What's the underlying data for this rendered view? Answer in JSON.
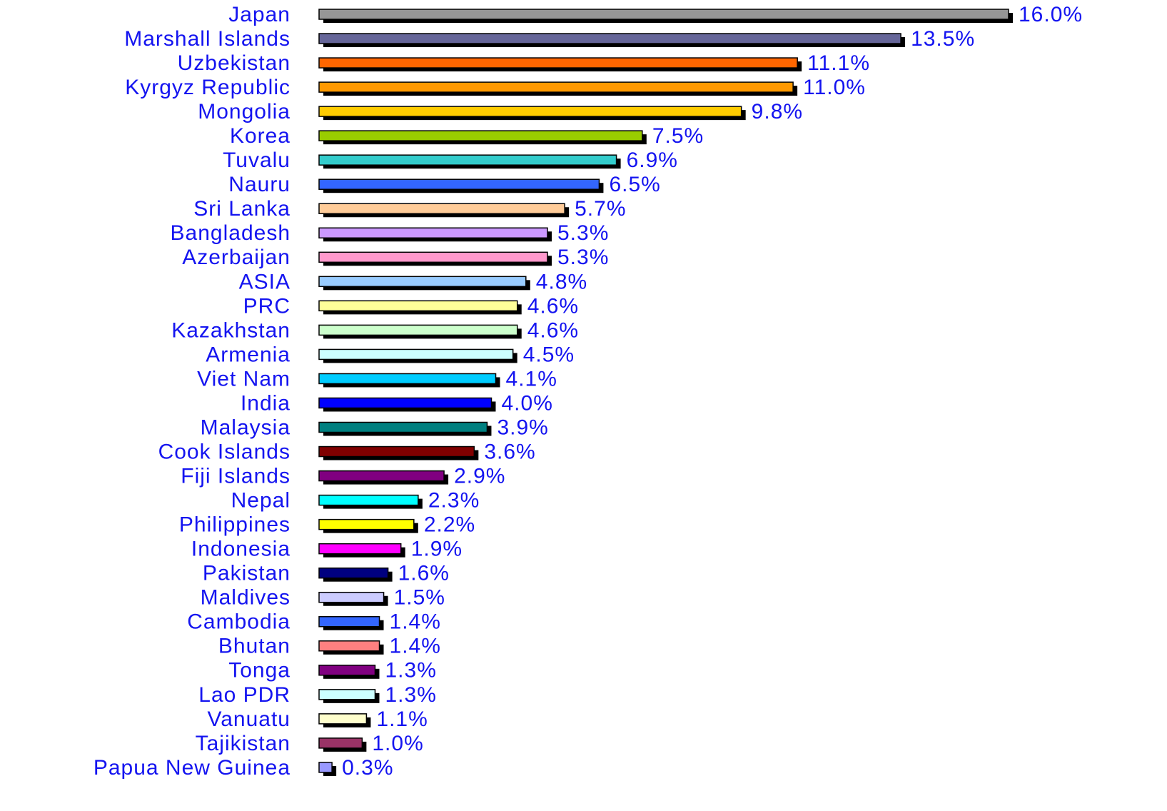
{
  "chart_data": {
    "type": "bar",
    "orientation": "horizontal",
    "categories": [
      "Japan",
      "Marshall Islands",
      "Uzbekistan",
      "Kyrgyz Republic",
      "Mongolia",
      "Korea",
      "Tuvalu",
      "Nauru",
      "Sri Lanka",
      "Bangladesh",
      "Azerbaijan",
      "ASIA",
      "PRC",
      "Kazakhstan",
      "Armenia",
      "Viet Nam",
      "India",
      "Malaysia",
      "Cook Islands",
      "Fiji Islands",
      "Nepal",
      "Philippines",
      "Indonesia",
      "Pakistan",
      "Maldives",
      "Cambodia",
      "Bhutan",
      "Tonga",
      "Lao PDR",
      "Vanuatu",
      "Tajikistan",
      "Papua New Guinea"
    ],
    "values": [
      16.0,
      13.5,
      11.1,
      11.0,
      9.8,
      7.5,
      6.9,
      6.5,
      5.7,
      5.3,
      5.3,
      4.8,
      4.6,
      4.6,
      4.5,
      4.1,
      4.0,
      3.9,
      3.6,
      2.9,
      2.3,
      2.2,
      1.9,
      1.6,
      1.5,
      1.4,
      1.4,
      1.3,
      1.3,
      1.1,
      1.0,
      0.3
    ],
    "value_labels": [
      "16.0%",
      "13.5%",
      "11.1%",
      "11.0%",
      "9.8%",
      "7.5%",
      "6.9%",
      "6.5%",
      "5.7%",
      "5.3%",
      "5.3%",
      "4.8%",
      "4.6%",
      "4.6%",
      "4.5%",
      "4.1%",
      "4.0%",
      "3.9%",
      "3.6%",
      "2.9%",
      "2.3%",
      "2.2%",
      "1.9%",
      "1.6%",
      "1.5%",
      "1.4%",
      "1.4%",
      "1.3%",
      "1.3%",
      "1.1%",
      "1.0%",
      "0.3%"
    ],
    "colors": [
      "#969696",
      "#666699",
      "#ff6600",
      "#ff9900",
      "#ffcc00",
      "#99cc00",
      "#33cccc",
      "#3366ff",
      "#ffcc99",
      "#cc99ff",
      "#ff99cc",
      "#99ccff",
      "#ffff99",
      "#ccffcc",
      "#ccffff",
      "#00ccff",
      "#0000ff",
      "#008080",
      "#800000",
      "#800080",
      "#00ffff",
      "#ffff00",
      "#ff00ff",
      "#000080",
      "#ccccff",
      "#3366ff",
      "#ff8080",
      "#800080",
      "#ccffff",
      "#ffffcc",
      "#993366",
      "#9999ff"
    ]
  }
}
